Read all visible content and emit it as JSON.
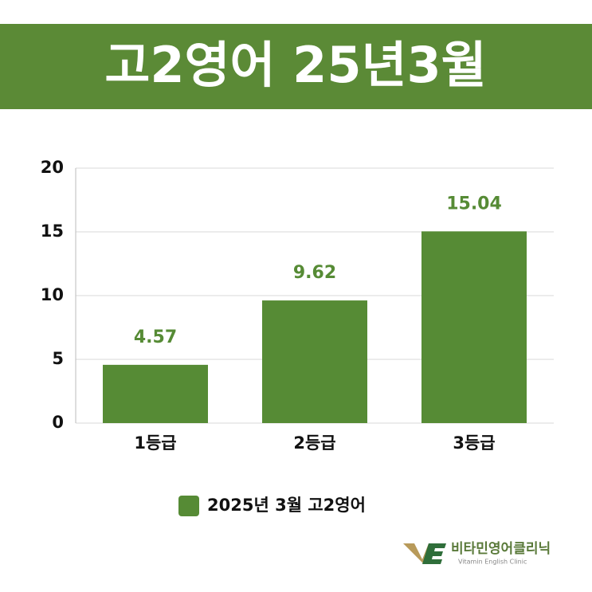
{
  "chart_data": {
    "type": "bar",
    "title": "고2영어 25년3월",
    "categories": [
      "1등급",
      "2등급",
      "3등급"
    ],
    "series": [
      {
        "name": "2025년 3월 고2영어",
        "color": "#568b35",
        "values": [
          4.57,
          9.62,
          15.04
        ]
      }
    ],
    "ylim": [
      0,
      20
    ],
    "yticks": [
      0,
      5,
      10,
      15,
      20
    ],
    "grid": true,
    "legend": "bottom"
  },
  "logo": {
    "name": "비타민영어클리닉",
    "tagline": "Vitamin English Clinic"
  }
}
